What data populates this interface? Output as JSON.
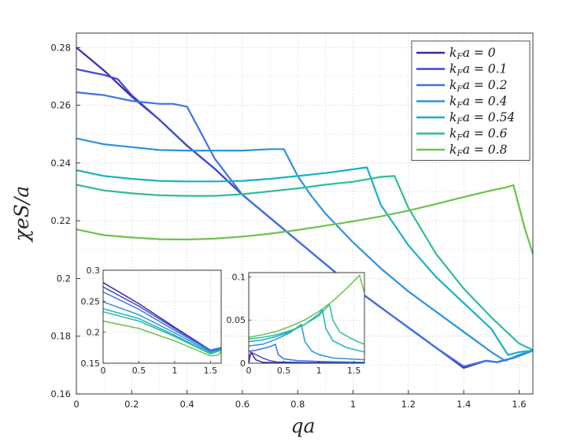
{
  "chart_data": {
    "type": "line",
    "xlabel": "qa",
    "ylabel": "χeS/a",
    "xlim": [
      0,
      1.65
    ],
    "ylim": [
      0.16,
      0.285
    ],
    "xticks": [
      "0",
      "0.2",
      "0.4",
      "0.6",
      "0.8",
      "1",
      "1.2",
      "1.4",
      "1.6"
    ],
    "yticks": [
      "0.16",
      "0.18",
      "0.2",
      "0.22",
      "0.24",
      "0.26",
      "0.28"
    ],
    "grid": true,
    "legend_position": "top-right",
    "series": [
      {
        "name": "k_F a = 0",
        "label": "kFa = 0",
        "color": "#3b2a9e",
        "x": [
          0,
          0.1,
          0.2,
          0.3,
          0.4,
          0.5,
          0.6,
          0.7,
          0.8,
          0.9,
          1.0,
          1.1,
          1.2,
          1.3,
          1.4,
          1.48,
          1.52,
          1.58,
          1.65
        ],
        "y": [
          0.28,
          0.272,
          0.263,
          0.255,
          0.246,
          0.238,
          0.229,
          0.221,
          0.213,
          0.205,
          0.197,
          0.19,
          0.183,
          0.176,
          0.169,
          0.1715,
          0.171,
          0.1725,
          0.175
        ]
      },
      {
        "name": "k_F a = 0.1",
        "label": "kFa = 0.1",
        "color": "#3f48d4",
        "x": [
          0,
          0.05,
          0.1,
          0.15,
          0.2,
          0.3,
          0.4,
          0.5,
          0.6,
          0.7,
          0.8,
          0.9,
          1.0,
          1.1,
          1.2,
          1.3,
          1.4,
          1.48,
          1.52,
          1.58,
          1.65
        ],
        "y": [
          0.2725,
          0.2715,
          0.2705,
          0.269,
          0.2635,
          0.255,
          0.246,
          0.238,
          0.229,
          0.221,
          0.213,
          0.205,
          0.197,
          0.19,
          0.183,
          0.176,
          0.1695,
          0.1715,
          0.171,
          0.1725,
          0.175
        ]
      },
      {
        "name": "k_F a = 0.2",
        "label": "kFa = 0.2",
        "color": "#3d73e6",
        "x": [
          0,
          0.1,
          0.2,
          0.3,
          0.35,
          0.4,
          0.45,
          0.5,
          0.6,
          0.7,
          0.8,
          0.9,
          1.0,
          1.1,
          1.2,
          1.3,
          1.4,
          1.48,
          1.52,
          1.58,
          1.65
        ],
        "y": [
          0.2645,
          0.2635,
          0.2615,
          0.2605,
          0.2605,
          0.2595,
          0.2505,
          0.2415,
          0.229,
          0.221,
          0.213,
          0.205,
          0.197,
          0.19,
          0.183,
          0.176,
          0.1695,
          0.1715,
          0.171,
          0.1725,
          0.175
        ]
      },
      {
        "name": "k_F a = 0.4",
        "label": "kFa = 0.4",
        "color": "#2a93de",
        "x": [
          0,
          0.1,
          0.2,
          0.3,
          0.4,
          0.5,
          0.6,
          0.7,
          0.75,
          0.8,
          0.85,
          0.9,
          1.0,
          1.1,
          1.2,
          1.3,
          1.4,
          1.5,
          1.55,
          1.6,
          1.65
        ],
        "y": [
          0.2485,
          0.2465,
          0.2455,
          0.2445,
          0.2443,
          0.2443,
          0.2443,
          0.2448,
          0.2448,
          0.2355,
          0.2285,
          0.2225,
          0.2125,
          0.2035,
          0.1955,
          0.1885,
          0.1815,
          0.1745,
          0.1715,
          0.1735,
          0.175
        ]
      },
      {
        "name": "k_F a = 0.54",
        "label": "kFa = 0.54",
        "color": "#19b0c9",
        "x": [
          0,
          0.1,
          0.2,
          0.3,
          0.4,
          0.5,
          0.6,
          0.7,
          0.8,
          0.9,
          1.0,
          1.05,
          1.1,
          1.2,
          1.3,
          1.4,
          1.5,
          1.56,
          1.6,
          1.65
        ],
        "y": [
          0.2375,
          0.2355,
          0.2345,
          0.2338,
          0.2336,
          0.2336,
          0.2338,
          0.2345,
          0.2355,
          0.2365,
          0.2378,
          0.2385,
          0.2255,
          0.2115,
          0.2005,
          0.1915,
          0.1825,
          0.1735,
          0.1745,
          0.175
        ]
      },
      {
        "name": "k_F a = 0.6",
        "label": "kFa = 0.6",
        "color": "#2ebd97",
        "x": [
          0,
          0.1,
          0.2,
          0.3,
          0.4,
          0.5,
          0.6,
          0.7,
          0.8,
          0.9,
          1.0,
          1.1,
          1.15,
          1.2,
          1.3,
          1.4,
          1.5,
          1.6,
          1.65
        ],
        "y": [
          0.2325,
          0.2305,
          0.2295,
          0.2288,
          0.2286,
          0.2286,
          0.2292,
          0.2302,
          0.2312,
          0.2325,
          0.2335,
          0.2352,
          0.2355,
          0.2245,
          0.2085,
          0.1965,
          0.1865,
          0.1775,
          0.1752
        ]
      },
      {
        "name": "k_F a = 0.8",
        "label": "kFa = 0.8",
        "color": "#6cc34a",
        "x": [
          0,
          0.1,
          0.2,
          0.3,
          0.4,
          0.5,
          0.6,
          0.7,
          0.8,
          0.9,
          1.0,
          1.1,
          1.2,
          1.3,
          1.4,
          1.5,
          1.55,
          1.58,
          1.62,
          1.65
        ],
        "y": [
          0.217,
          0.215,
          0.2142,
          0.2136,
          0.2135,
          0.2138,
          0.2145,
          0.2155,
          0.2168,
          0.2183,
          0.2198,
          0.2215,
          0.2235,
          0.2258,
          0.2282,
          0.2305,
          0.2315,
          0.2323,
          0.2175,
          0.2085
        ]
      }
    ],
    "insets": [
      {
        "type": "line",
        "xlim": [
          0,
          1.65
        ],
        "ylim": [
          0.15,
          0.3
        ],
        "xticks": [
          "0",
          "0.5",
          "1",
          "1.5"
        ],
        "yticks": [
          "0.15",
          "0.2",
          "0.25",
          "0.3"
        ],
        "series_values": [
          {
            "x": [
              0,
              0.5,
              1.0,
              1.5,
              1.65
            ],
            "y": [
              0.28,
              0.246,
              0.208,
              0.171,
              0.175
            ]
          },
          {
            "x": [
              0,
              0.5,
              1.0,
              1.5,
              1.65
            ],
            "y": [
              0.273,
              0.242,
              0.206,
              0.171,
              0.175
            ]
          },
          {
            "x": [
              0,
              0.5,
              1.0,
              1.5,
              1.65
            ],
            "y": [
              0.265,
              0.237,
              0.203,
              0.17,
              0.174
            ]
          },
          {
            "x": [
              0,
              0.5,
              1.0,
              1.5,
              1.65
            ],
            "y": [
              0.249,
              0.228,
              0.199,
              0.168,
              0.173
            ]
          },
          {
            "x": [
              0,
              0.5,
              1.0,
              1.5,
              1.65
            ],
            "y": [
              0.238,
              0.222,
              0.195,
              0.166,
              0.172
            ]
          },
          {
            "x": [
              0,
              0.5,
              1.0,
              1.5,
              1.65
            ],
            "y": [
              0.233,
              0.218,
              0.193,
              0.165,
              0.171
            ]
          },
          {
            "x": [
              0,
              0.5,
              1.0,
              1.5,
              1.6,
              1.65
            ],
            "y": [
              0.218,
              0.206,
              0.186,
              0.162,
              0.163,
              0.168
            ]
          }
        ]
      },
      {
        "type": "line",
        "xlim": [
          0,
          1.65
        ],
        "ylim": [
          0,
          0.105
        ],
        "xticks": [
          "0",
          "0.5",
          "1",
          "1.5"
        ],
        "yticks": [
          "0",
          "0.05",
          "0.1"
        ],
        "series_values": [
          {
            "x": [
              0,
              0.03,
              0.1,
              0.2,
              0.4,
              0.8,
              1.65
            ],
            "y": [
              0,
              0.013,
              0.004,
              0.001,
              0.0005,
              0.0003,
              0.0002
            ]
          },
          {
            "x": [
              0,
              0.05,
              0.1,
              0.2,
              0.3,
              0.4,
              0.8,
              1.65
            ],
            "y": [
              0.008,
              0.012,
              0.01,
              0.006,
              0.003,
              0.0015,
              0.0008,
              0.0005
            ]
          },
          {
            "x": [
              0,
              0.1,
              0.2,
              0.3,
              0.38,
              0.42,
              0.5,
              0.7,
              1.0,
              1.65
            ],
            "y": [
              0.014,
              0.015,
              0.017,
              0.019,
              0.022,
              0.01,
              0.005,
              0.003,
              0.002,
              0.001
            ]
          },
          {
            "x": [
              0,
              0.2,
              0.4,
              0.6,
              0.75,
              0.8,
              0.9,
              1.0,
              1.2,
              1.65
            ],
            "y": [
              0.02,
              0.022,
              0.028,
              0.036,
              0.045,
              0.025,
              0.014,
              0.01,
              0.006,
              0.004
            ]
          },
          {
            "x": [
              0,
              0.2,
              0.4,
              0.6,
              0.8,
              1.0,
              1.05,
              1.1,
              1.2,
              1.4,
              1.65
            ],
            "y": [
              0.025,
              0.027,
              0.031,
              0.037,
              0.045,
              0.057,
              0.062,
              0.04,
              0.026,
              0.018,
              0.013
            ]
          },
          {
            "x": [
              0,
              0.2,
              0.4,
              0.6,
              0.8,
              1.0,
              1.15,
              1.2,
              1.3,
              1.5,
              1.65
            ],
            "y": [
              0.028,
              0.03,
              0.033,
              0.038,
              0.045,
              0.055,
              0.068,
              0.05,
              0.036,
              0.027,
              0.022
            ]
          },
          {
            "x": [
              0,
              0.2,
              0.4,
              0.6,
              0.8,
              1.0,
              1.2,
              1.4,
              1.58,
              1.62,
              1.65
            ],
            "y": [
              0.03,
              0.033,
              0.037,
              0.043,
              0.05,
              0.06,
              0.072,
              0.087,
              0.102,
              0.09,
              0.082
            ]
          }
        ]
      }
    ]
  }
}
